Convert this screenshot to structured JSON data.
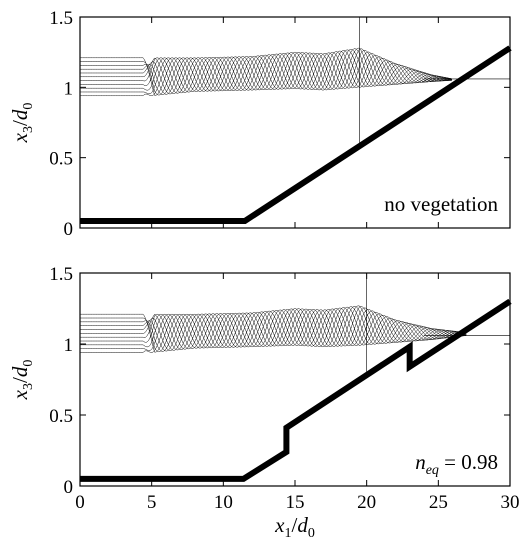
{
  "chart_data": [
    {
      "type": "line",
      "annotation": "no vegetation",
      "xlim": [
        0,
        30
      ],
      "ylim": [
        0,
        1.5
      ],
      "x_ticks": [
        "0",
        "5",
        "10",
        "15",
        "20",
        "25",
        "30"
      ],
      "y_ticks": [
        "0",
        "0.5",
        "1",
        "1.5"
      ],
      "ylabel": {
        "var": "x",
        "sub1": "3",
        "sep": "/",
        "var2": "d",
        "sub2": "0"
      },
      "bed": {
        "name": "",
        "x": [
          0,
          11.5,
          30
        ],
        "y": [
          0.05,
          0.05,
          1.28
        ]
      },
      "wave_envelope": {
        "x": [
          0,
          5,
          8,
          12,
          15,
          17,
          19.5,
          22,
          24.5,
          26
        ],
        "upper": [
          1.21,
          1.21,
          1.21,
          1.22,
          1.25,
          1.24,
          1.28,
          1.17,
          1.09,
          1.06
        ],
        "lower": [
          0.94,
          0.94,
          0.97,
          0.98,
          0.99,
          0.98,
          1.0,
          1.02,
          1.04,
          1.05
        ]
      },
      "reference_lines": {
        "x": 19.5,
        "y": 1.06
      }
    },
    {
      "type": "line",
      "annotation": "n_eq = 0.98",
      "annotation_parts": {
        "n": "n",
        "sub": "eq",
        "rest": " = 0.98"
      },
      "xlim": [
        0,
        30
      ],
      "ylim": [
        0,
        1.5
      ],
      "x_ticks": [
        "0",
        "5",
        "10",
        "15",
        "20",
        "25",
        "30"
      ],
      "y_ticks": [
        "0",
        "0.5",
        "1",
        "1.5"
      ],
      "xlabel": {
        "var": "x",
        "sub1": "1",
        "sep": "/",
        "var2": "d",
        "sub2": "0"
      },
      "ylabel": {
        "var": "x",
        "sub1": "3",
        "sep": "/",
        "var2": "d",
        "sub2": "0"
      },
      "bed": {
        "name": "",
        "x": [
          0,
          11.4,
          14.4,
          14.4,
          23.0,
          23.0,
          30
        ],
        "y": [
          0.05,
          0.05,
          0.24,
          0.41,
          0.98,
          0.84,
          1.3
        ]
      },
      "wave_envelope": {
        "x": [
          0,
          5,
          8,
          12,
          15,
          17,
          19.5,
          22,
          24.5,
          27
        ],
        "upper": [
          1.21,
          1.21,
          1.21,
          1.22,
          1.25,
          1.24,
          1.27,
          1.17,
          1.11,
          1.08
        ],
        "lower": [
          0.94,
          0.94,
          0.97,
          0.98,
          0.99,
          0.98,
          0.99,
          1.01,
          1.03,
          1.06
        ]
      },
      "reference_lines": {
        "x": 20.0,
        "y": 1.06
      }
    }
  ]
}
